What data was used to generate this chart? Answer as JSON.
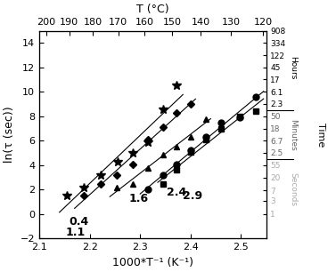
{
  "xlim": [
    2.1,
    2.55
  ],
  "ylim": [
    -2,
    15
  ],
  "xlabel": "1000*T⁻¹ (K⁻¹)",
  "ylabel": "ln(τ (sec))",
  "top_xlabel": "T (°C)",
  "top_temps": [
    200,
    190,
    180,
    170,
    160,
    150,
    140,
    130,
    120
  ],
  "right_yticks_hours": [
    908,
    334,
    122,
    45,
    17,
    6.1,
    2.3
  ],
  "right_yticks_minutes": [
    50,
    18,
    6.7,
    2.5
  ],
  "right_yticks_seconds": [
    55,
    20,
    7,
    3,
    1
  ],
  "series": [
    {
      "label": "0.4",
      "marker": "*",
      "ms": 7,
      "data_x": [
        2.155,
        2.188,
        2.221,
        2.255,
        2.285,
        2.315,
        2.345,
        2.373
      ],
      "data_y": [
        1.5,
        2.2,
        3.2,
        4.3,
        5.0,
        5.9,
        8.6,
        10.5
      ],
      "fit_xmin": 2.14,
      "fit_xmax": 2.385,
      "lbl_x": 2.158,
      "lbl_y": -0.6
    },
    {
      "label": "1.1",
      "marker": "D",
      "ms": 4,
      "data_x": [
        2.188,
        2.221,
        2.253,
        2.285,
        2.315,
        2.345,
        2.373,
        2.4
      ],
      "data_y": [
        1.5,
        2.5,
        3.2,
        4.1,
        6.1,
        7.1,
        8.3,
        9.0
      ],
      "fit_xmin": 2.17,
      "fit_xmax": 2.41,
      "lbl_x": 2.152,
      "lbl_y": -1.5
    },
    {
      "label": "1.6",
      "marker": "^",
      "ms": 5,
      "data_x": [
        2.253,
        2.285,
        2.315,
        2.345,
        2.373,
        2.4,
        2.43
      ],
      "data_y": [
        2.2,
        2.5,
        3.8,
        4.9,
        5.5,
        6.3,
        7.8
      ],
      "fit_xmin": 2.24,
      "fit_xmax": 2.44,
      "lbl_x": 2.278,
      "lbl_y": 1.3
    },
    {
      "label": "2.4",
      "marker": "o",
      "ms": 5,
      "data_x": [
        2.315,
        2.345,
        2.373,
        2.4,
        2.43,
        2.46,
        2.498,
        2.53
      ],
      "data_y": [
        2.0,
        3.2,
        4.1,
        5.2,
        6.3,
        7.5,
        7.9,
        9.6
      ],
      "fit_xmin": 2.3,
      "fit_xmax": 2.545,
      "lbl_x": 2.352,
      "lbl_y": 1.8
    },
    {
      "label": "2.9",
      "marker": "s",
      "ms": 4,
      "data_x": [
        2.345,
        2.373,
        2.4,
        2.43,
        2.46,
        2.498,
        2.53
      ],
      "data_y": [
        2.5,
        3.6,
        5.1,
        6.1,
        7.0,
        8.0,
        8.4
      ],
      "fit_xmin": 2.335,
      "fit_xmax": 2.545,
      "lbl_x": 2.385,
      "lbl_y": 1.5
    }
  ],
  "background_color": "white",
  "figsize": [
    3.77,
    3.06
  ],
  "dpi": 100
}
